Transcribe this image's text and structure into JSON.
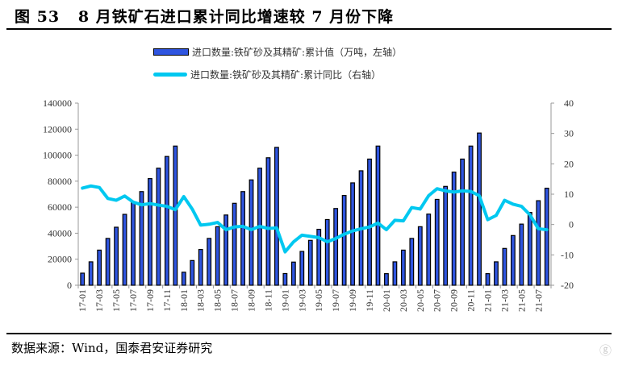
{
  "title": "图 53   8 月铁矿石进口累计同比增速较 7 月份下降",
  "source": "数据来源：Wind，国泰君安证券研究",
  "watermark": "格隆汇",
  "chart_data": {
    "type": "bar+line",
    "categories": [
      "17-01",
      "17-02",
      "17-03",
      "17-04",
      "17-05",
      "17-06",
      "17-07",
      "17-08",
      "17-09",
      "17-10",
      "17-11",
      "17-12",
      "18-01",
      "18-02",
      "18-03",
      "18-04",
      "18-05",
      "18-06",
      "18-07",
      "18-08",
      "18-09",
      "18-10",
      "18-11",
      "18-12",
      "19-01",
      "19-02",
      "19-03",
      "19-04",
      "19-05",
      "19-06",
      "19-07",
      "19-08",
      "19-09",
      "19-10",
      "19-11",
      "19-12",
      "20-01",
      "20-02",
      "20-03",
      "20-04",
      "20-05",
      "20-06",
      "20-07",
      "20-08",
      "20-09",
      "20-10",
      "20-11",
      "20-12",
      "21-01",
      "21-02",
      "21-03",
      "21-04",
      "21-05",
      "21-06",
      "21-07",
      "21-08"
    ],
    "x_tick_labels": [
      "17-01",
      "17-03",
      "17-05",
      "17-07",
      "17-09",
      "17-11",
      "18-01",
      "18-03",
      "18-05",
      "18-07",
      "18-09",
      "18-11",
      "19-01",
      "19-03",
      "19-05",
      "19-07",
      "19-09",
      "19-11",
      "20-01",
      "20-03",
      "20-05",
      "20-07",
      "20-09",
      "20-11",
      "21-01",
      "21-03",
      "21-05",
      "21-07"
    ],
    "series": [
      {
        "name": "进口数量:铁矿砂及其精矿:累计值（万吨，左轴）",
        "type": "bar",
        "axis": "left",
        "color": "#2f55e0",
        "values": [
          9300,
          18000,
          27000,
          36000,
          44600,
          54500,
          64000,
          72000,
          82000,
          90000,
          99000,
          107000,
          10000,
          19000,
          27500,
          36000,
          45000,
          54000,
          63000,
          72000,
          81000,
          90000,
          98000,
          106000,
          9000,
          17800,
          26000,
          34500,
          43000,
          50500,
          59000,
          69000,
          78700,
          88000,
          97000,
          107000,
          8900,
          18000,
          27000,
          36000,
          45000,
          54700,
          66000,
          76000,
          87000,
          97000,
          107000,
          117000,
          8900,
          18000,
          28300,
          38200,
          47000,
          56000,
          65000,
          74600
        ]
      },
      {
        "name": "进口数量:铁矿砂及其精矿:累计同比（右轴）",
        "type": "line",
        "axis": "right",
        "color": "#00c8f0",
        "values": [
          12.0,
          12.7,
          12.2,
          8.6,
          8.0,
          9.4,
          7.4,
          6.5,
          6.9,
          6.4,
          6.0,
          4.9,
          9.2,
          5.1,
          -0.2,
          0.1,
          0.7,
          -1.7,
          -0.8,
          -0.6,
          -1.7,
          -0.6,
          -1.3,
          -1.1,
          -9.0,
          -5.7,
          -3.5,
          -3.9,
          -4.3,
          -5.7,
          -4.6,
          -3.2,
          -2.1,
          -1.4,
          -0.8,
          0.5,
          -1.7,
          1.4,
          1.2,
          5.6,
          5.1,
          9.5,
          11.8,
          11.1,
          10.7,
          11.1,
          10.9,
          9.5,
          1.6,
          3.0,
          8.0,
          6.7,
          6.0,
          3.2,
          -1.4,
          -1.7
        ]
      }
    ],
    "left_axis": {
      "ylim": [
        0,
        140000
      ],
      "ticks": [
        "0",
        "20000",
        "40000",
        "60000",
        "80000",
        "100000",
        "120000",
        "140000"
      ]
    },
    "right_axis": {
      "ylim": [
        -20,
        40
      ],
      "ticks": [
        "-20",
        "-10",
        "0",
        "10",
        "20",
        "30",
        "40"
      ]
    },
    "grid": false,
    "legend_position": "top"
  }
}
